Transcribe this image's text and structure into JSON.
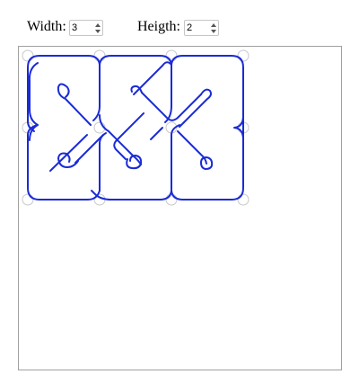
{
  "controls": {
    "width": {
      "label": "Width:",
      "value": "3"
    },
    "height": {
      "label": "Heigth:",
      "value": "2"
    }
  },
  "knot": {
    "stroke_color": "#1a2bd6",
    "handle_color": "#c8c8c8",
    "grid_columns": 3,
    "grid_rows": 2
  }
}
